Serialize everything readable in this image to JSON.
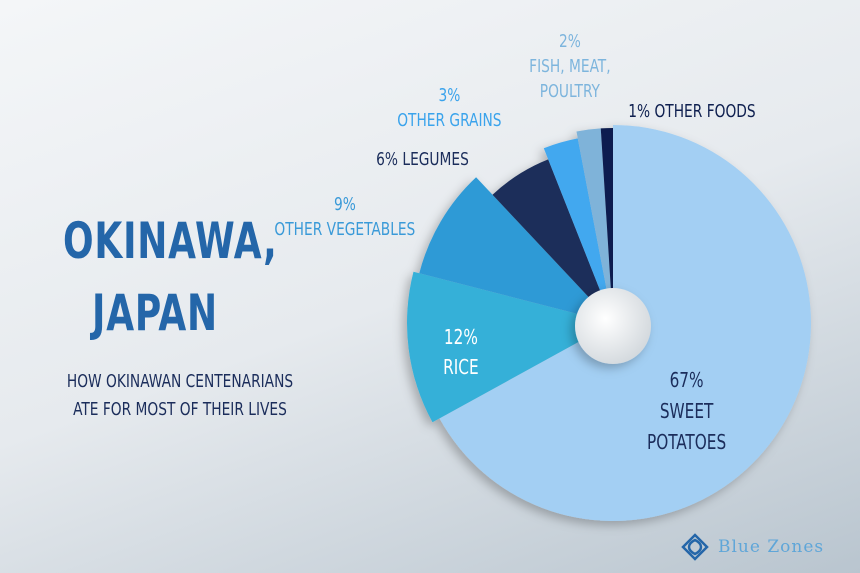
{
  "chart_data": {
    "type": "pie",
    "title": "Okinawa, Japan",
    "subtitle": "How Okinawan centenarians ate for most of their lives",
    "slices": [
      {
        "label": "Sweet Potatoes",
        "value": 67,
        "value_label": "67%",
        "color": "#a3cff3"
      },
      {
        "label": "Rice",
        "value": 12,
        "value_label": "12%",
        "color": "#36b0d8"
      },
      {
        "label": "Other Vegetables",
        "value": 9,
        "value_label": "9%",
        "color": "#2f9ad6"
      },
      {
        "label": "Legumes",
        "value": 6,
        "value_label": "6%",
        "color": "#1c2f5a"
      },
      {
        "label": "Other Grains",
        "value": 3,
        "value_label": "3%",
        "color": "#42a8ef"
      },
      {
        "label": "Fish, Meat, Poultry",
        "value": 2,
        "value_label": "2%",
        "color": "#7fb3d9"
      },
      {
        "label": "Other Foods",
        "value": 1,
        "value_label": "1%",
        "color": "#0e1f4f"
      }
    ]
  },
  "header": {
    "title_line1": "Okinawa,",
    "title_line2": "Japan",
    "subtitle_line1": "How Okinawan centenarians",
    "subtitle_line2": "ate for most of their lives"
  },
  "brand": {
    "name": "Blue Zones",
    "tm": "™"
  }
}
